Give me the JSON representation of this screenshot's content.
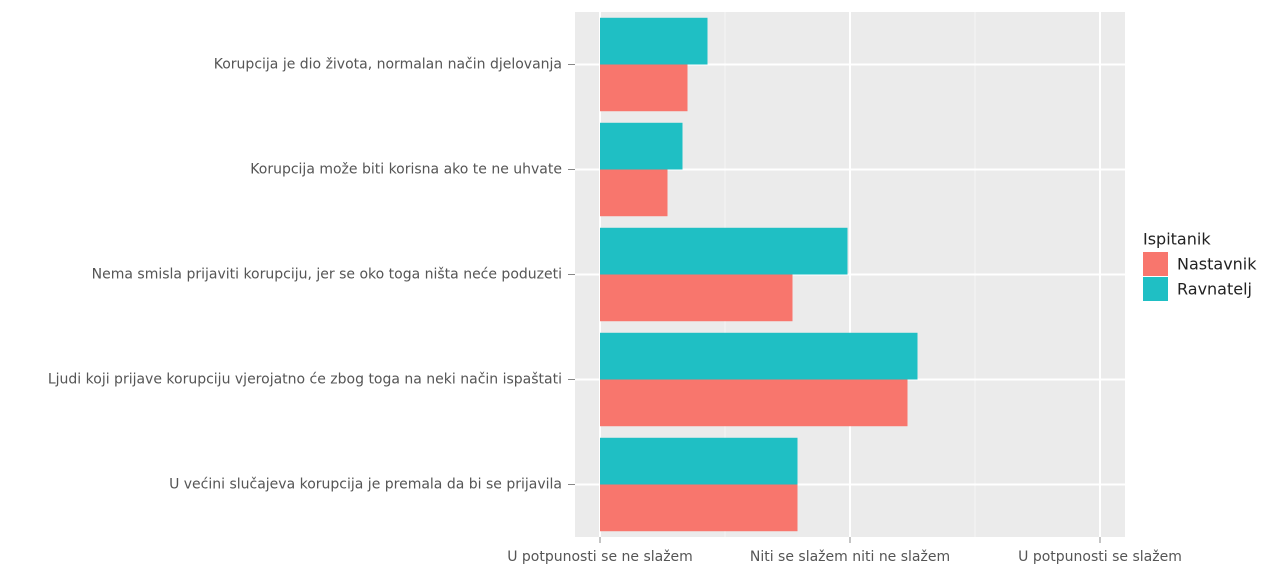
{
  "chart_data": {
    "type": "barh",
    "categories": [
      "Korupcija je dio života, normalan način djelovanja",
      "Korupcija može biti korisna ako te ne uhvate",
      "Nema smisla prijaviti korupciju, jer se oko toga ništa neće poduzeti",
      "Ljudi koji prijave korupciju vjerojatno će zbog toga na neki način ispaštati",
      "U većini slučajeva korupcija je premala da bi se prijavila"
    ],
    "series": [
      {
        "name": "Nastavnik",
        "color": "#f8766d",
        "values": [
          0.7,
          0.54,
          1.54,
          2.46,
          1.58
        ]
      },
      {
        "name": "Ravnatelj",
        "color": "#1fbfc4",
        "values": [
          0.86,
          0.66,
          1.98,
          2.54,
          1.58
        ]
      }
    ],
    "legend_title": "Ispitanik",
    "xlim": [
      -0.2,
      4.2
    ],
    "xticks": [
      {
        "value": 0,
        "label": "U potpunosti se ne slažem"
      },
      {
        "value": 2,
        "label": "Niti se slažem niti ne slažem"
      },
      {
        "value": 4,
        "label": "U potpunosti se slažem"
      }
    ],
    "xminor_ticks": [
      1,
      3
    ],
    "grid": true,
    "legend": "right"
  }
}
